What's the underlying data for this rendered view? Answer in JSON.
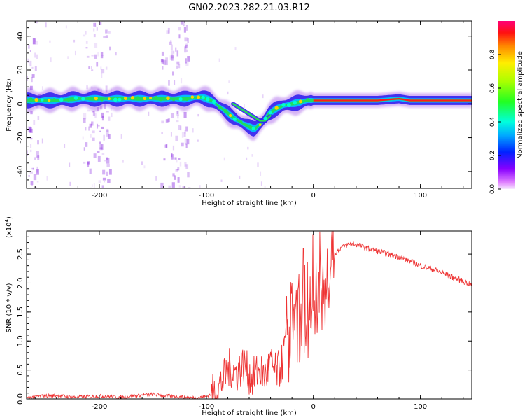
{
  "figure_title": "GN02.2023.282.21.03.R12",
  "colors": {
    "snr_line": "#ee3333",
    "trace_core": "#ff1a1a",
    "trace_mid": "#22dd55",
    "trace_outer": "#3322ee",
    "trace_halo": "#8a2be2"
  },
  "chart_data": [
    {
      "type": "heatmap",
      "title": "GN02.2023.282.21.03.R12",
      "xlabel": "Height of straight line (km)",
      "ylabel": "Frequency (Hz)",
      "xlim": [
        -268,
        148
      ],
      "ylim": [
        -50,
        49
      ],
      "x_ticks": [
        "-200",
        "-100",
        "0",
        "100"
      ],
      "x_tick_values": [
        -200,
        -100,
        0,
        100
      ],
      "y_ticks": [
        "-40",
        "-20",
        "0",
        "20",
        "40"
      ],
      "y_tick_values": [
        -40,
        -20,
        0,
        20,
        40
      ],
      "colorbar": {
        "label": "Normalized spectral amplitude",
        "range": [
          0,
          1
        ],
        "ticks": [
          "0.0",
          "0.2",
          "0.4",
          "0.6",
          "0.8"
        ],
        "tick_values": [
          0.0,
          0.2,
          0.4,
          0.6,
          0.8
        ],
        "colormap": "gist_rainbow_r (magenta-to-white floor)"
      },
      "dominant_frequency_trace": {
        "x": [
          -268,
          -240,
          -220,
          -200,
          -180,
          -160,
          -140,
          -120,
          -105,
          -95,
          -85,
          -75,
          -65,
          -55,
          -48,
          -42,
          -35,
          -28,
          -20,
          -12,
          -5,
          0,
          20,
          40,
          60,
          80,
          90,
          100,
          120,
          148
        ],
        "y": [
          2,
          2,
          3,
          3,
          3,
          3,
          3,
          3,
          4,
          2,
          -3,
          -8,
          -12,
          -15,
          -11,
          -6,
          -3,
          -1,
          0,
          1,
          2,
          2,
          2,
          2,
          2,
          3,
          2,
          2,
          2,
          2
        ]
      },
      "secondary_trace": {
        "x": [
          -75,
          -70,
          -65,
          -60,
          -55,
          -50,
          -45,
          -40
        ],
        "y": [
          0,
          -2,
          -4,
          -6,
          -8,
          -10,
          -10,
          -7
        ]
      },
      "broadband_noise_columns_x": [
        -270,
        -203,
        -130
      ]
    },
    {
      "type": "line",
      "xlabel": "Height of straight line (km)",
      "ylabel": "SNR (10 * v/v)",
      "y_scale_label": "(x10",
      "y_scale_exponent": "4",
      "xlim": [
        -268,
        148
      ],
      "ylim": [
        0,
        2.9
      ],
      "x_ticks": [
        "-200",
        "-100",
        "0",
        "100"
      ],
      "x_tick_values": [
        -200,
        -100,
        0,
        100
      ],
      "y_ticks": [
        "0.0",
        "0.5",
        "1.0",
        "1.5",
        "2.0",
        "2.5"
      ],
      "y_tick_values": [
        0.0,
        0.5,
        1.0,
        1.5,
        2.0,
        2.5
      ],
      "series": [
        {
          "x": [
            -268,
            -255,
            -240,
            -225,
            -210,
            -195,
            -180,
            -165,
            -150,
            -135,
            -120,
            -110,
            -100,
            -92,
            -85,
            -78,
            -72,
            -65,
            -58,
            -50,
            -45,
            -40,
            -35,
            -30,
            -25,
            -22,
            -18,
            -15,
            -10,
            -5,
            0,
            5,
            10,
            15,
            20,
            25,
            30,
            35,
            40,
            50,
            60,
            70,
            80,
            90,
            100,
            110,
            120,
            130,
            140,
            148
          ],
          "y": [
            0.02,
            0.05,
            0.06,
            0.03,
            0.04,
            0.05,
            0.03,
            0.06,
            0.08,
            0.05,
            0.03,
            0.02,
            0.04,
            0.12,
            0.3,
            0.55,
            0.45,
            0.6,
            0.35,
            0.5,
            0.4,
            0.6,
            0.45,
            0.55,
            1.1,
            1.5,
            1.8,
            1.4,
            2.0,
            1.7,
            2.1,
            2.2,
            2.1,
            2.3,
            2.5,
            2.6,
            2.65,
            2.68,
            2.67,
            2.6,
            2.55,
            2.5,
            2.45,
            2.38,
            2.3,
            2.25,
            2.18,
            2.1,
            2.03,
            1.97
          ]
        }
      ]
    }
  ]
}
